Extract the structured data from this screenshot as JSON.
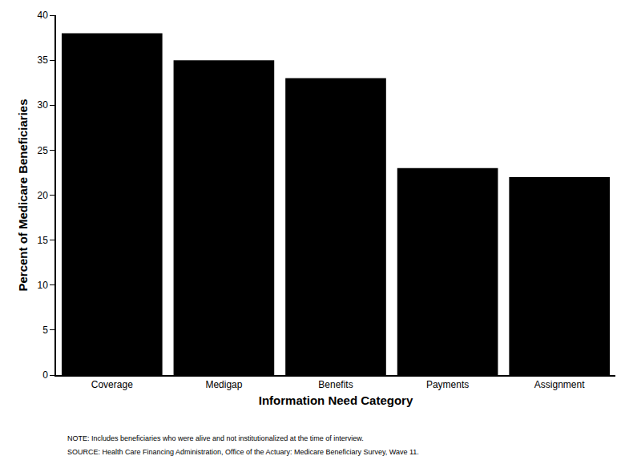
{
  "chart_data": {
    "type": "bar",
    "x_label": "Information Need Category",
    "y_label": "Percent of Medicare Beneficiaries",
    "categories": [
      "Coverage",
      "Medigap",
      "Benefits",
      "Payments",
      "Assignment"
    ],
    "values": [
      38,
      35,
      33,
      23,
      22
    ],
    "color": "#000000",
    "ylim": [
      0,
      40
    ],
    "yticks": [
      0,
      5,
      10,
      15,
      20,
      25,
      30,
      35,
      40
    ],
    "grid": false,
    "notes": [
      "NOTE: Includes beneficiaries who were alive and not institutionalized at the time of interview.",
      "SOURCE: Health Care Financing Administration, Office of the Actuary: Medicare Beneficiary Survey, Wave 11."
    ]
  }
}
